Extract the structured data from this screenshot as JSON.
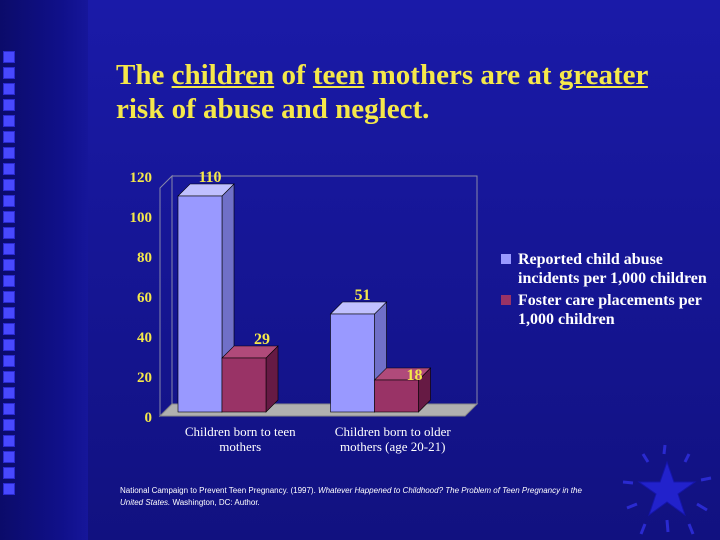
{
  "slide": {
    "title_parts": [
      {
        "text": "The ",
        "u": false
      },
      {
        "text": "children",
        "u": true
      },
      {
        "text": " of ",
        "u": false
      },
      {
        "text": "teen",
        "u": true
      },
      {
        "text": " mothers are at ",
        "u": false
      },
      {
        "text": "greater",
        "u": true
      },
      {
        "text": " risk of abuse and neglect.",
        "u": false
      }
    ],
    "citation": {
      "part1": "National Campaign to Prevent Teen Pregnancy. (1997). ",
      "part2": "Whatever Happened to Childhood? The Problem of Teen Pregnancy in the United States.",
      "part3": " Washington, DC: Author."
    }
  },
  "chart_data": {
    "type": "bar",
    "categories": [
      [
        "Children born to teen",
        "mothers"
      ],
      [
        "Children born to older",
        "mothers (age 20-21)"
      ]
    ],
    "series": [
      {
        "name": "Reported child abuse incidents per 1,000 children",
        "values": [
          110,
          51
        ],
        "color": "#9999ff"
      },
      {
        "name": "Foster care placements per 1,000 children",
        "values": [
          29,
          18
        ],
        "color": "#993366"
      }
    ],
    "ylim": [
      0,
      120
    ],
    "yticks": [
      0,
      20,
      40,
      60,
      80,
      100,
      120
    ],
    "legend_position": "right",
    "colors": {
      "tick_text": "#f5e84a",
      "data_label": "#f5e84a",
      "axis_text": "#ffffff",
      "wall": "#b0b0b0"
    }
  }
}
